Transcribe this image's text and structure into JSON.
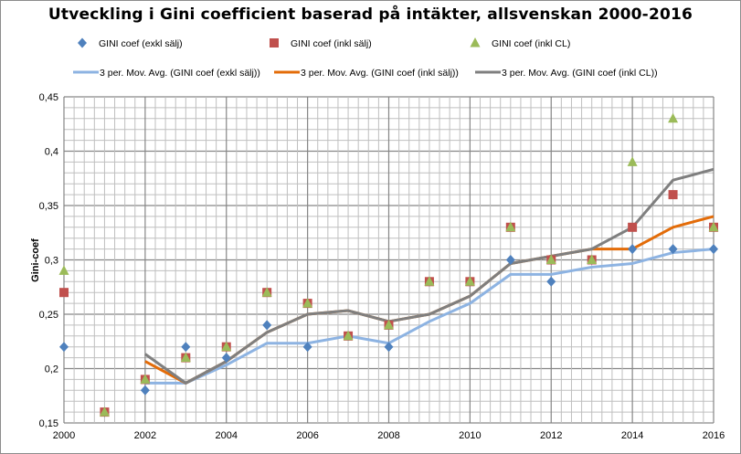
{
  "chart_data": {
    "type": "scatter",
    "title": "Utveckling i Gini coefficient baserad på intäkter, allsvenskan 2000-2016",
    "xlabel": "",
    "ylabel": "Gini-coef",
    "xlim": [
      2000,
      2016
    ],
    "ylim": [
      0.15,
      0.45
    ],
    "x_ticks": [
      "2000",
      "2002",
      "2004",
      "2006",
      "2008",
      "2010",
      "2012",
      "2014",
      "2016"
    ],
    "y_ticks": [
      "0,15",
      "0,2",
      "0,25",
      "0,3",
      "0,35",
      "0,4",
      "0,45"
    ],
    "grid": true,
    "legend_position": "top",
    "x": [
      2000,
      2001,
      2002,
      2003,
      2004,
      2005,
      2006,
      2007,
      2008,
      2009,
      2010,
      2011,
      2012,
      2013,
      2014,
      2015,
      2016
    ],
    "series": [
      {
        "name": "GINI coef (exkl sälj)",
        "marker": "diamond",
        "color": "#4f81bd",
        "values": [
          0.22,
          0.16,
          0.18,
          0.22,
          0.21,
          0.24,
          0.22,
          0.23,
          0.22,
          0.28,
          0.28,
          0.3,
          0.28,
          0.3,
          0.31,
          0.31,
          0.31
        ]
      },
      {
        "name": "GINI coef (inkl sälj)",
        "marker": "square",
        "color": "#c0504d",
        "values": [
          0.27,
          0.16,
          0.19,
          0.21,
          0.22,
          0.27,
          0.26,
          0.23,
          0.24,
          0.28,
          0.28,
          0.33,
          0.3,
          0.3,
          0.33,
          0.36,
          0.33
        ]
      },
      {
        "name": "GINI coef (inkl CL)",
        "marker": "triangle",
        "color": "#9bbb59",
        "values": [
          0.29,
          0.16,
          0.19,
          0.21,
          0.22,
          0.27,
          0.26,
          0.23,
          0.24,
          0.28,
          0.28,
          0.33,
          0.3,
          0.3,
          0.39,
          0.43,
          0.33
        ]
      }
    ],
    "trendlines": [
      {
        "name": "3 per. Mov. Avg. (GINI coef (exkl sälj))",
        "of_series": 0,
        "period": 3,
        "color": "#8db3e2"
      },
      {
        "name": "3 per. Mov. Avg. (GINI coef (inkl sälj))",
        "of_series": 1,
        "period": 3,
        "color": "#e36c09"
      },
      {
        "name": "3 per. Mov. Avg. (GINI coef (inkl CL))",
        "of_series": 2,
        "period": 3,
        "color": "#7f7f7f"
      }
    ]
  }
}
